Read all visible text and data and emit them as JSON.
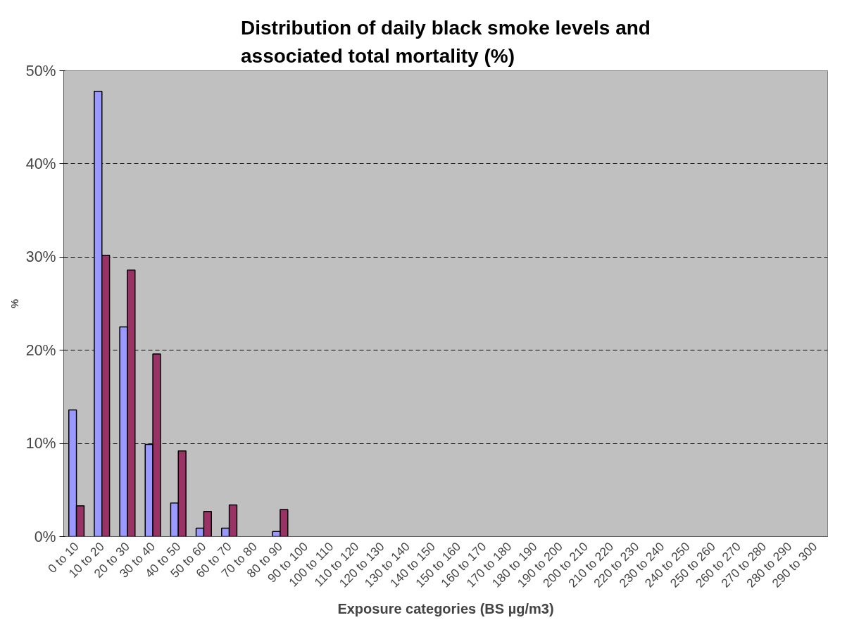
{
  "chart_data": {
    "type": "bar",
    "title": "Distribution of daily black smoke levels and associated total mortality (%)",
    "xlabel": "Exposure categories (BS µg/m3)",
    "ylabel": "%",
    "categories": [
      "0 to 10",
      "10 to 20",
      "20 to 30",
      "30 to 40",
      "40 to 50",
      "50 to 60",
      "60 to 70",
      "70 to 80",
      "80 to 90",
      "90 to 100",
      "100 to 110",
      "110 to 120",
      "120 to 130",
      "130 to 140",
      "140 to 150",
      "150 to 160",
      "160 to 170",
      "170 to 180",
      "180 to 190",
      "190 to 200",
      "200 to 210",
      "210 to 220",
      "220 to 230",
      "230 to 240",
      "240 to 250",
      "250 to 260",
      "260 to 270",
      "270 to 280",
      "280 to 290",
      "290 to 300"
    ],
    "series": [
      {
        "color": "#9999ff",
        "values": [
          13.6,
          47.8,
          22.5,
          9.9,
          3.6,
          0.9,
          0.9,
          null,
          0.55,
          null,
          null,
          null,
          null,
          null,
          null,
          null,
          null,
          null,
          null,
          null,
          null,
          null,
          null,
          null,
          null,
          null,
          null,
          null,
          null,
          null
        ]
      },
      {
        "color": "#993366",
        "values": [
          3.3,
          30.2,
          28.6,
          19.6,
          9.2,
          2.7,
          3.4,
          null,
          2.9,
          null,
          null,
          null,
          null,
          null,
          null,
          null,
          null,
          null,
          null,
          null,
          null,
          null,
          null,
          null,
          null,
          null,
          null,
          null,
          null,
          null
        ]
      }
    ],
    "ylim": [
      0,
      50
    ],
    "yticks": [
      {
        "value": 0,
        "label": "0%"
      },
      {
        "value": 10,
        "label": "10%"
      },
      {
        "value": 20,
        "label": "20%"
      },
      {
        "value": 30,
        "label": "30%"
      },
      {
        "value": 40,
        "label": "40%"
      },
      {
        "value": 50,
        "label": "50%"
      }
    ],
    "grid": "y"
  }
}
